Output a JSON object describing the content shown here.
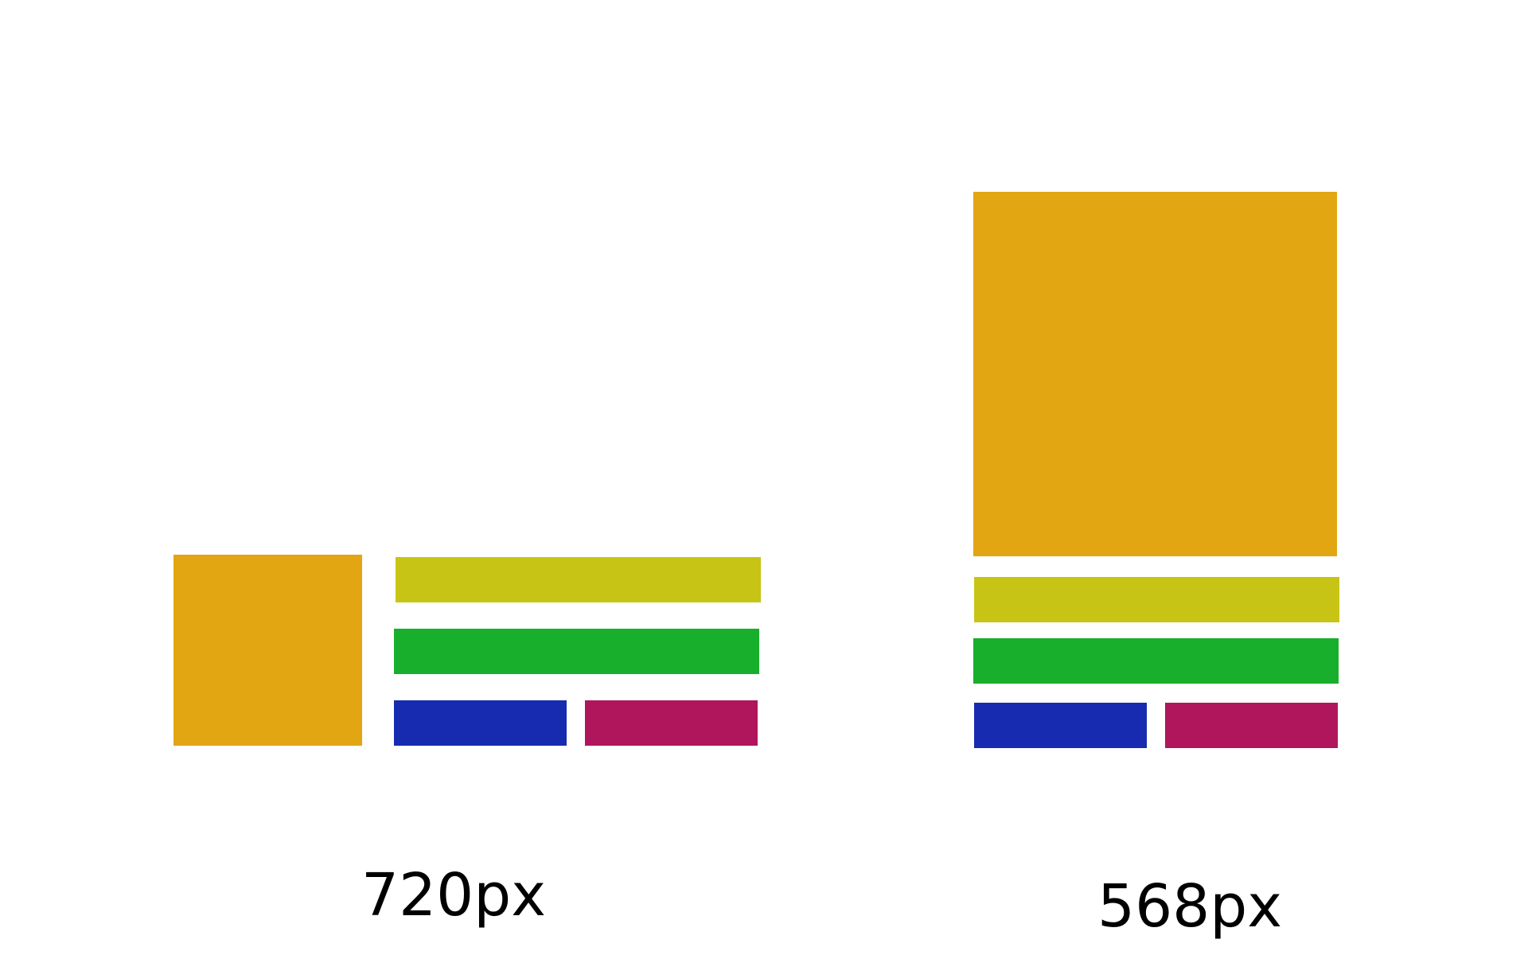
{
  "colors": {
    "hero": "#E1A612",
    "row1": "#C7C415",
    "row2": "#17AF2B",
    "row3a": "#162BAF",
    "row3b": "#AF165C"
  },
  "layouts": [
    {
      "id": "wide",
      "caption": "720px"
    },
    {
      "id": "narrow",
      "caption": "568px"
    }
  ]
}
